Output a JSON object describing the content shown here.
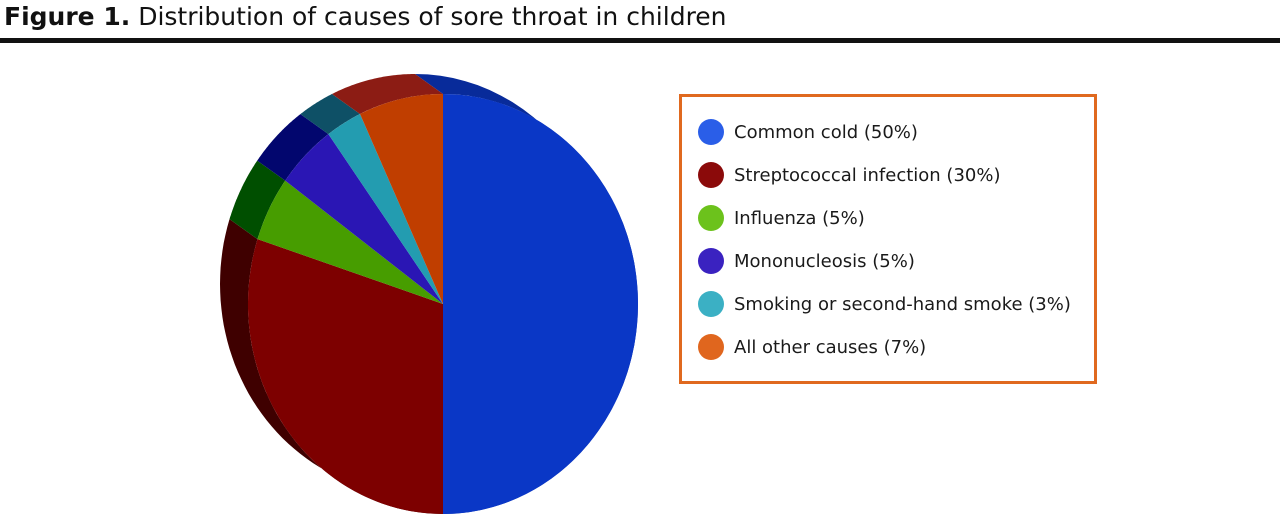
{
  "figure": {
    "label": "Figure 1.",
    "title": "Distribution of causes of sore throat in children"
  },
  "chart_data": {
    "type": "pie",
    "title": "Distribution of causes of sore throat in children",
    "legend_placement": "right",
    "slices": [
      {
        "label": "Common cold (50%)",
        "value": 50,
        "color": "#0a37c6",
        "legend_color": "#2a5ee8",
        "side_color": "#082b9a"
      },
      {
        "label": "Streptococcal infection (30%)",
        "value": 30,
        "color": "#7d0000",
        "legend_color": "#8b0a0a",
        "side_color": "#3f0000"
      },
      {
        "label": "Influenza (5%)",
        "value": 5,
        "color": "#479d00",
        "legend_color": "#6cc21c",
        "side_color": "#004f00"
      },
      {
        "label": "Mononucleosis (5%)",
        "value": 5,
        "color": "#2a16b4",
        "legend_color": "#3a22c0",
        "side_color": "#02066e"
      },
      {
        "label": "Smoking or second-hand smoke (3%)",
        "value": 3,
        "color": "#239cb0",
        "legend_color": "#3bb0c4",
        "side_color": "#0e5066"
      },
      {
        "label": "All other causes (7%)",
        "value": 7,
        "color": "#c03e00",
        "legend_color": "#e0661e",
        "side_color": "#8c1c14"
      }
    ]
  }
}
